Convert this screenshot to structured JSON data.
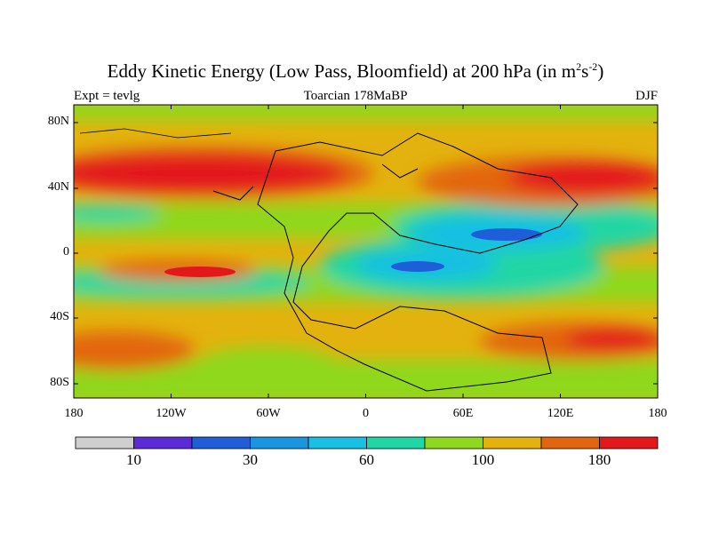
{
  "title": {
    "main": "Eddy Kinetic Energy (Low Pass, Bloomfield) at 200 hPa (in m",
    "sup1": "2",
    "mid": "s",
    "sup2": "-2",
    "end": ")"
  },
  "subtitles": {
    "left": "Expt = tevlg",
    "center": "Toarcian 178MaBP",
    "right": "DJF"
  },
  "axes": {
    "lat_ticks": [
      "80N",
      "40N",
      "0",
      "40S",
      "80S"
    ],
    "lon_ticks": [
      "180",
      "120W",
      "60W",
      "0",
      "60E",
      "120E",
      "180"
    ]
  },
  "colorbar": {
    "colors": [
      "#cfcfcf",
      "#5a2bd6",
      "#1e5fd9",
      "#1a95e0",
      "#19c0e3",
      "#20d6a4",
      "#8fd81f",
      "#e3b20e",
      "#e3660f",
      "#e3181b"
    ],
    "labels": [
      "10",
      "30",
      "60",
      "100",
      "180"
    ]
  }
}
